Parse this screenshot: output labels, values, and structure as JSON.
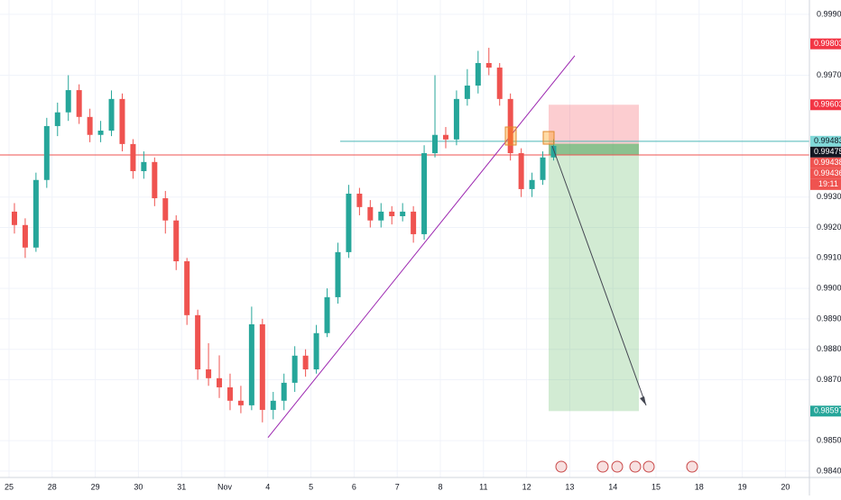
{
  "chart_data": {
    "type": "candlestick",
    "categories": [
      "25",
      "28",
      "29",
      "30",
      "31",
      "Nov",
      "4",
      "5",
      "6",
      "7",
      "8",
      "11",
      "12",
      "13",
      "14",
      "15",
      "18",
      "19",
      "20"
    ],
    "candles_per_day": 4,
    "open": [
      0.99252,
      0.99208,
      0.99134,
      0.99356,
      0.99533,
      0.99578,
      0.99651,
      0.99563,
      0.99504,
      0.99518,
      0.99622,
      0.99474,
      0.99385,
      0.99415,
      0.99296,
      0.99223,
      0.99089,
      0.98912,
      0.98734,
      0.98705,
      0.98675,
      0.98631,
      0.98616,
      0.98882,
      0.98601,
      0.98631,
      0.9869,
      0.98779,
      0.98734,
      0.98853,
      0.98971,
      0.99119,
      0.99311,
      0.99267,
      0.99223,
      0.99252,
      0.99237,
      0.99252,
      0.99178,
      0.99444,
      0.99504,
      0.99489,
      0.99622,
      0.99666,
      0.9974,
      0.99725,
      0.99622,
      0.99444,
      0.99326,
      0.99356,
      0.9943
    ],
    "close": [
      0.99208,
      0.99134,
      0.99356,
      0.99533,
      0.99578,
      0.99651,
      0.99563,
      0.99504,
      0.99518,
      0.99622,
      0.99474,
      0.99385,
      0.99415,
      0.99296,
      0.99223,
      0.99089,
      0.98912,
      0.98734,
      0.98705,
      0.98675,
      0.98631,
      0.98616,
      0.98882,
      0.98601,
      0.98631,
      0.9869,
      0.98779,
      0.98734,
      0.98853,
      0.98971,
      0.99119,
      0.99311,
      0.99267,
      0.99223,
      0.99252,
      0.99237,
      0.99252,
      0.99178,
      0.99444,
      0.99504,
      0.99489,
      0.99622,
      0.99666,
      0.9974,
      0.99725,
      0.99622,
      0.99444,
      0.99326,
      0.99356,
      0.9943,
      0.99468
    ],
    "high": [
      0.9928,
      0.9923,
      0.9938,
      0.9956,
      0.9961,
      0.997,
      0.9967,
      0.9959,
      0.9955,
      0.9965,
      0.9964,
      0.9949,
      0.9945,
      0.9943,
      0.9932,
      0.9924,
      0.991,
      0.9893,
      0.9882,
      0.9878,
      0.9872,
      0.9868,
      0.9894,
      0.989,
      0.9866,
      0.9872,
      0.9881,
      0.988,
      0.9888,
      0.99,
      0.9915,
      0.9934,
      0.9933,
      0.9929,
      0.9928,
      0.9927,
      0.9928,
      0.9927,
      0.9947,
      0.997,
      0.9953,
      0.9965,
      0.9972,
      0.9978,
      0.9979,
      0.9974,
      0.9964,
      0.9946,
      0.9938,
      0.9945,
      0.9949
    ],
    "low": [
      0.9918,
      0.991,
      0.9912,
      0.9933,
      0.995,
      0.9955,
      0.9954,
      0.9948,
      0.9948,
      0.995,
      0.9945,
      0.9936,
      0.9936,
      0.9927,
      0.9918,
      0.9906,
      0.9888,
      0.987,
      0.9868,
      0.9864,
      0.986,
      0.9859,
      0.986,
      0.9856,
      0.9857,
      0.986,
      0.9866,
      0.9871,
      0.9872,
      0.9884,
      0.9895,
      0.991,
      0.9924,
      0.992,
      0.992,
      0.9921,
      0.9922,
      0.9915,
      0.9916,
      0.9943,
      0.9946,
      0.9947,
      0.996,
      0.9964,
      0.997,
      0.996,
      0.9942,
      0.993,
      0.993,
      0.9934,
      0.9942
    ],
    "up_color": "#26a69a",
    "down_color": "#ef5350",
    "ylim": [
      0.98379,
      0.99947
    ],
    "yticks": [
      {
        "value": 0.999,
        "label": "0.99900"
      },
      {
        "value": 0.997,
        "label": "0.99700"
      },
      {
        "value": 0.993,
        "label": "0.99300"
      },
      {
        "value": 0.992,
        "label": "0.99200"
      },
      {
        "value": 0.991,
        "label": "0.99100"
      },
      {
        "value": 0.99,
        "label": "0.99000"
      },
      {
        "value": 0.989,
        "label": "0.98900"
      },
      {
        "value": 0.988,
        "label": "0.98800"
      },
      {
        "value": 0.987,
        "label": "0.98700"
      },
      {
        "value": 0.985,
        "label": "0.98500"
      },
      {
        "value": 0.984,
        "label": "0.98400"
      }
    ],
    "grid": true,
    "trendline": [
      0.9851,
      0.99764
    ],
    "horizontal_line": 0.99483,
    "bid_line": 0.99438,
    "position": {
      "stop": 0.99603,
      "entry": 0.99475,
      "target": 0.98597
    },
    "price_labels": [
      {
        "value": 0.99803,
        "color": "#f23645"
      },
      {
        "value": 0.99603,
        "color": "#f23645"
      },
      {
        "value": 0.99483,
        "color": "#80d8d8"
      },
      {
        "value": 0.99475,
        "color": "#131722"
      },
      {
        "value": 0.99438,
        "color": "#ef5350"
      },
      {
        "value": 0.99436,
        "color": "#ef5350"
      },
      {
        "value": 0.98597,
        "color": "#26a69a"
      }
    ],
    "countdown": "19:11"
  }
}
